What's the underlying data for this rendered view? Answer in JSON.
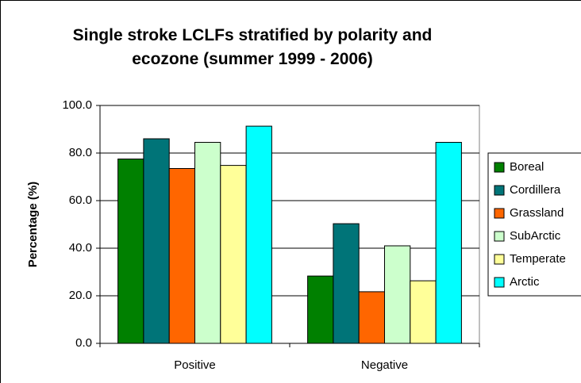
{
  "chart_data": {
    "type": "bar",
    "title": "Single stroke LCLFs stratified by polarity and ecozone (summer 1999 - 2006)",
    "y_label": "Percentage (%)",
    "categories": [
      "Positive",
      "Negative"
    ],
    "series": [
      {
        "name": "Boreal",
        "color": "#008000",
        "values": [
          77.5,
          28.3
        ]
      },
      {
        "name": "Cordillera",
        "color": "#007478",
        "values": [
          86.0,
          50.3
        ]
      },
      {
        "name": "Grassland",
        "color": "#ff6600",
        "values": [
          73.5,
          21.7
        ]
      },
      {
        "name": "SubArctic",
        "color": "#ccffcc",
        "values": [
          84.5,
          41.0
        ]
      },
      {
        "name": "Temperate",
        "color": "#ffff99",
        "values": [
          74.8,
          26.3
        ]
      },
      {
        "name": "Arctic",
        "color": "#00ffff",
        "values": [
          91.3,
          84.5
        ]
      }
    ],
    "ylim": [
      0,
      100
    ],
    "yticks": [
      {
        "value": 0,
        "label": "0.0"
      },
      {
        "value": 20,
        "label": "20.0"
      },
      {
        "value": 40,
        "label": "40.0"
      },
      {
        "value": 60,
        "label": "60.0"
      },
      {
        "value": 80,
        "label": "80.0"
      },
      {
        "value": 100,
        "label": "100.0"
      }
    ],
    "grid": true,
    "legend": "right"
  }
}
